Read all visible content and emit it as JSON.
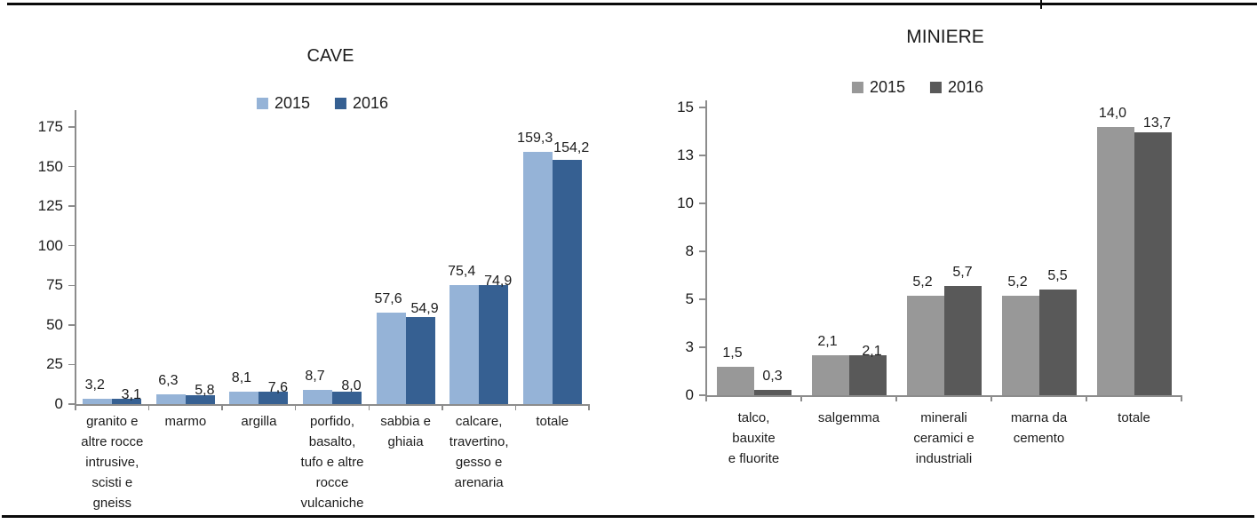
{
  "page": {
    "description": "Two side-by-side clustered bar charts comparing 2015 and 2016 values",
    "rules": {
      "top": true,
      "bottom": true
    }
  },
  "chart_data": [
    {
      "id": "cave",
      "type": "bar",
      "title": "CAVE",
      "legend_position": "top-center",
      "grid": false,
      "axis": {
        "ylim": [
          0,
          175
        ],
        "tick_step": 25,
        "tick_labels": [
          "0",
          "25",
          "50",
          "75",
          "100",
          "125",
          "150",
          "175"
        ]
      },
      "categories": [
        [
          "granito e",
          "altre rocce",
          "intrusive,",
          "scisti e",
          "gneiss"
        ],
        [
          "marmo"
        ],
        [
          "argilla"
        ],
        [
          "porfido,",
          "basalto,",
          "tufo e altre",
          "rocce",
          "vulcaniche"
        ],
        [
          "sabbia e",
          "ghiaia"
        ],
        [
          "calcare,",
          "travertino,",
          "gesso e",
          "arenaria"
        ],
        [
          "totale"
        ]
      ],
      "series": [
        {
          "name": "2015",
          "color": "#95B3D7",
          "values": [
            3.2,
            6.3,
            8.1,
            8.7,
            57.6,
            75.4,
            159.3
          ],
          "labels": [
            "3,2",
            "6,3",
            "8,1",
            "8,7",
            "57,6",
            "75,4",
            "159,3"
          ]
        },
        {
          "name": "2016",
          "color": "#366092",
          "values": [
            3.1,
            5.8,
            7.6,
            8.0,
            54.9,
            74.9,
            154.2
          ],
          "labels": [
            "3,1",
            "5,8",
            "7,6",
            "8,0",
            "54,9",
            "74,9",
            "154,2"
          ]
        }
      ]
    },
    {
      "id": "miniere",
      "type": "bar",
      "title": "MINIERE",
      "legend_position": "top-center",
      "grid": false,
      "axis": {
        "ylim": [
          0,
          15
        ],
        "tick_step": 2.5,
        "tick_labels": [
          "0",
          "3",
          "5",
          "8",
          "10",
          "13",
          "15"
        ]
      },
      "categories": [
        [
          "talco,",
          "bauxite",
          "e fluorite"
        ],
        [
          "salgemma"
        ],
        [
          "minerali",
          "ceramici e",
          "industriali"
        ],
        [
          "marna da",
          "cemento"
        ],
        [
          "totale"
        ]
      ],
      "series": [
        {
          "name": "2015",
          "color": "#989898",
          "values": [
            1.5,
            2.1,
            5.2,
            5.2,
            14.0
          ],
          "labels": [
            "1,5",
            "2,1",
            "5,2",
            "5,2",
            "14,0"
          ]
        },
        {
          "name": "2016",
          "color": "#595959",
          "values": [
            0.3,
            2.1,
            5.7,
            5.5,
            13.7
          ],
          "labels": [
            "0,3",
            "2,1",
            "5,7",
            "5,5",
            "13,7"
          ]
        }
      ]
    }
  ]
}
